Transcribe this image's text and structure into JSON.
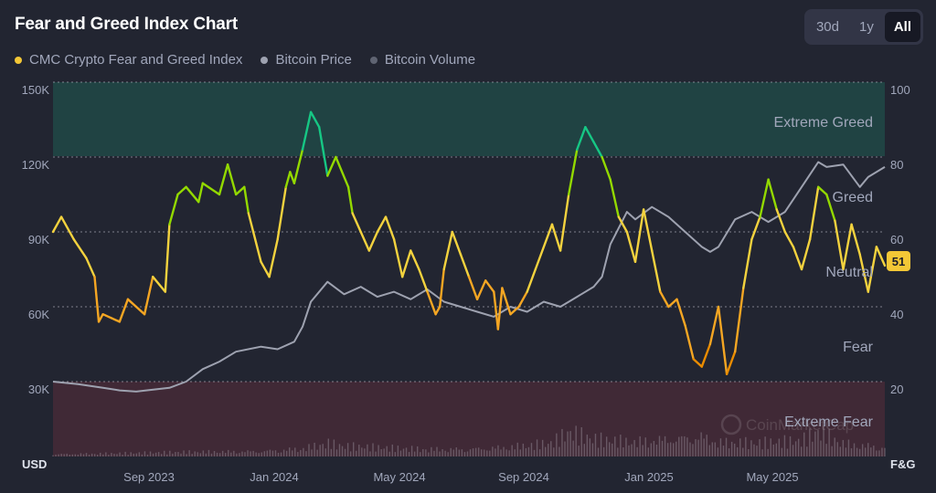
{
  "header": {
    "title": "Fear and Greed Index Chart",
    "ranges": [
      {
        "label": "30d",
        "active": false
      },
      {
        "label": "1y",
        "active": false
      },
      {
        "label": "All",
        "active": true
      }
    ]
  },
  "legend": [
    {
      "label": "CMC Crypto Fear and Greed Index",
      "color": "#f3c736"
    },
    {
      "label": "Bitcoin Price",
      "color": "#9ea2b0"
    },
    {
      "label": "Bitcoin Volume",
      "color": "#5f6472"
    }
  ],
  "watermark": "CoinMarketCap",
  "chart_data": {
    "type": "line",
    "x_ticks": [
      "Sep 2023",
      "Jan 2024",
      "May 2024",
      "Sep 2024",
      "Jan 2025",
      "May 2025"
    ],
    "left_axis": {
      "unit": "USD",
      "ticks": [
        "150K",
        "120K",
        "90K",
        "60K",
        "30K"
      ],
      "range": [
        0,
        150000
      ]
    },
    "right_axis": {
      "unit": "F&G",
      "ticks": [
        "100",
        "80",
        "60",
        "40",
        "20"
      ],
      "range": [
        0,
        100
      ]
    },
    "zones": [
      {
        "label": "Extreme Greed",
        "from": 80,
        "to": 100,
        "color": "#1f5c52"
      },
      {
        "label": "Greed",
        "from": 60,
        "to": 80
      },
      {
        "label": "Neutral",
        "from": 40,
        "to": 60
      },
      {
        "label": "Fear",
        "from": 20,
        "to": 40
      },
      {
        "label": "Extreme Fear",
        "from": 0,
        "to": 20,
        "color": "#5a2d3a"
      }
    ],
    "current_value": "51",
    "series": [
      {
        "name": "CMC Crypto Fear and Greed Index",
        "axis": "right",
        "x": [
          0,
          0.01,
          0.025,
          0.04,
          0.05,
          0.055,
          0.06,
          0.07,
          0.08,
          0.09,
          0.1,
          0.11,
          0.12,
          0.135,
          0.14,
          0.15,
          0.16,
          0.175,
          0.18,
          0.2,
          0.21,
          0.22,
          0.23,
          0.235,
          0.25,
          0.26,
          0.27,
          0.28,
          0.285,
          0.29,
          0.3,
          0.31,
          0.32,
          0.33,
          0.34,
          0.355,
          0.36,
          0.37,
          0.38,
          0.39,
          0.4,
          0.41,
          0.42,
          0.43,
          0.44,
          0.45,
          0.46,
          0.465,
          0.47,
          0.48,
          0.49,
          0.5,
          0.51,
          0.52,
          0.53,
          0.535,
          0.54,
          0.55,
          0.56,
          0.57,
          0.58,
          0.6,
          0.61,
          0.62,
          0.63,
          0.64,
          0.65,
          0.66,
          0.67,
          0.68,
          0.69,
          0.7,
          0.71,
          0.72,
          0.73,
          0.74,
          0.75,
          0.76,
          0.77,
          0.78,
          0.79,
          0.8,
          0.81,
          0.82,
          0.83,
          0.84,
          0.85,
          0.86,
          0.87,
          0.88,
          0.89,
          0.9,
          0.91,
          0.92,
          0.93,
          0.94,
          0.95,
          0.96,
          0.97,
          0.98,
          0.99,
          1
        ],
        "y": [
          60,
          64,
          58,
          53,
          48,
          36,
          38,
          37,
          36,
          42,
          40,
          38,
          48,
          44,
          62,
          70,
          72,
          68,
          73,
          70,
          78,
          70,
          72,
          65,
          52,
          48,
          58,
          72,
          76,
          73,
          82,
          92,
          88,
          75,
          80,
          72,
          65,
          60,
          55,
          60,
          64,
          58,
          48,
          55,
          50,
          44,
          38,
          40,
          50,
          60,
          54,
          48,
          42,
          47,
          44,
          34,
          45,
          38,
          40,
          44,
          50,
          62,
          55,
          70,
          82,
          88,
          84,
          80,
          74,
          64,
          60,
          52,
          66,
          55,
          44,
          40,
          42,
          35,
          26,
          24,
          30,
          40,
          22,
          28,
          45,
          58,
          64,
          74,
          66,
          60,
          56,
          50,
          58,
          72,
          70,
          63,
          50,
          62,
          54,
          44,
          56,
          51
        ],
        "color": "#f3c736"
      },
      {
        "name": "Bitcoin Price",
        "axis": "left",
        "x": [
          0,
          0.03,
          0.06,
          0.08,
          0.1,
          0.14,
          0.16,
          0.18,
          0.2,
          0.22,
          0.25,
          0.27,
          0.29,
          0.3,
          0.31,
          0.33,
          0.35,
          0.37,
          0.39,
          0.41,
          0.43,
          0.45,
          0.47,
          0.49,
          0.51,
          0.53,
          0.55,
          0.57,
          0.59,
          0.61,
          0.63,
          0.65,
          0.66,
          0.67,
          0.69,
          0.7,
          0.72,
          0.74,
          0.76,
          0.78,
          0.79,
          0.8,
          0.82,
          0.84,
          0.86,
          0.88,
          0.9,
          0.92,
          0.93,
          0.95,
          0.97,
          0.98,
          1
        ],
        "y": [
          30000,
          29000,
          27500,
          26500,
          26000,
          27500,
          30000,
          35000,
          38000,
          42000,
          44000,
          43000,
          46000,
          52000,
          62000,
          70000,
          65000,
          68000,
          64000,
          66000,
          63000,
          67000,
          62000,
          60000,
          58000,
          56000,
          60000,
          58000,
          62000,
          60000,
          64000,
          68000,
          72000,
          85000,
          98000,
          95000,
          100000,
          96000,
          90000,
          84000,
          82000,
          84000,
          95000,
          98000,
          94000,
          98000,
          108000,
          118000,
          116000,
          117000,
          108000,
          112000,
          116000
        ],
        "color": "#9ea2b0"
      },
      {
        "name": "Bitcoin Volume",
        "axis": "left",
        "x": [
          0,
          0.05,
          0.1,
          0.15,
          0.2,
          0.25,
          0.3,
          0.33,
          0.35,
          0.4,
          0.45,
          0.5,
          0.55,
          0.6,
          0.62,
          0.65,
          0.7,
          0.75,
          0.78,
          0.8,
          0.85,
          0.9,
          0.92,
          0.95,
          1
        ],
        "y": [
          1500,
          1800,
          2000,
          2500,
          3000,
          3500,
          5000,
          8000,
          6000,
          5000,
          4500,
          5000,
          6000,
          8000,
          14000,
          10000,
          9000,
          12000,
          13000,
          9000,
          8000,
          9000,
          15000,
          8000,
          6000
        ],
        "color": "#5f6472"
      }
    ]
  }
}
